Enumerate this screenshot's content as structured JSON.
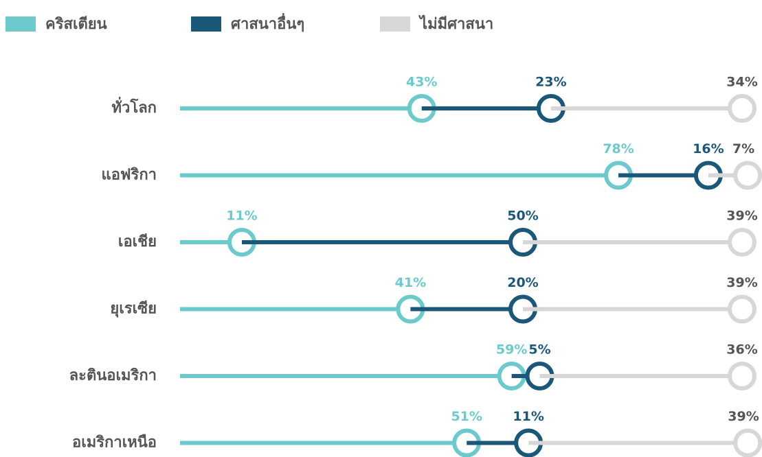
{
  "chart_data": {
    "type": "stacked-dot",
    "categories": [
      "ทั่วโลก",
      "แอฟริกา",
      "เอเชีย",
      "ยุเรเซีย",
      "ละตินอเมริกา",
      "อเมริกาเหนือ"
    ],
    "series": [
      {
        "name": "คริสเตียน",
        "color": "#6ccacd",
        "values": [
          43,
          78,
          11,
          41,
          59,
          51
        ],
        "value_labels": [
          "43%",
          "78%",
          "11%",
          "41%",
          "59%",
          "51%"
        ]
      },
      {
        "name": "ศาสนาอื่นๆ",
        "color": "#1b5778",
        "values": [
          23,
          16,
          50,
          20,
          5,
          11
        ],
        "value_labels": [
          "23%",
          "16%",
          "50%",
          "20%",
          "5%",
          "11%"
        ]
      },
      {
        "name": "ไม่มีศาสนา",
        "color": "#d7d7d7",
        "values": [
          34,
          7,
          39,
          39,
          36,
          39
        ],
        "value_labels": [
          "34%",
          "7%",
          "39%",
          "39%",
          "36%",
          "39%"
        ]
      }
    ]
  }
}
